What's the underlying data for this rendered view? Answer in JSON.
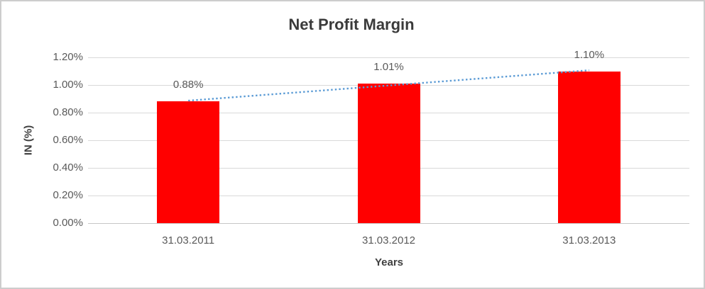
{
  "frame": {
    "background": "#ffffff",
    "border_color": "#cdcdcd"
  },
  "chart_data": {
    "type": "bar",
    "title": "Net Profit Margin",
    "xlabel": "Years",
    "ylabel": "IN (%)",
    "categories": [
      "31.03.2011",
      "31.03.2012",
      "31.03.2013"
    ],
    "series": [
      {
        "name": "Net Profit Margin",
        "values": [
          0.88,
          1.01,
          1.1
        ],
        "data_labels": [
          "0.88%",
          "1.01%",
          "1.10%"
        ],
        "color": "#ff0000"
      }
    ],
    "y_ticks": [
      {
        "value": 0.0,
        "label": "0.00%"
      },
      {
        "value": 0.2,
        "label": "0.20%"
      },
      {
        "value": 0.4,
        "label": "0.40%"
      },
      {
        "value": 0.6,
        "label": "0.60%"
      },
      {
        "value": 0.8,
        "label": "0.80%"
      },
      {
        "value": 1.0,
        "label": "1.00%"
      },
      {
        "value": 1.2,
        "label": "1.20%"
      }
    ],
    "ylim": [
      0,
      1.2
    ],
    "grid": true,
    "legend": "none",
    "gridline_color": "#d9d9d9",
    "axis_line_color": "#c6c6c6",
    "tick_label_color": "#595959",
    "data_label_color": "#595959",
    "title_color": "#3a3a3a",
    "axis_title_color": "#404040",
    "trendline": {
      "type": "linear",
      "style": "dotted",
      "color": "#5b9bd5"
    }
  }
}
